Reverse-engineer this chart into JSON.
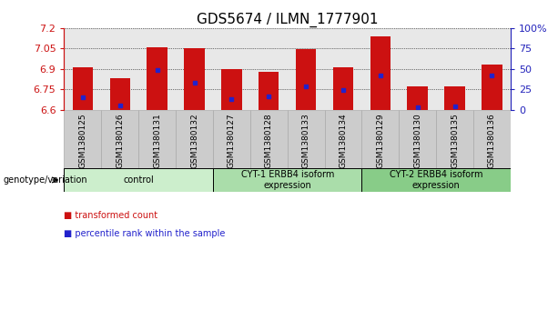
{
  "title": "GDS5674 / ILMN_1777901",
  "samples": [
    "GSM1380125",
    "GSM1380126",
    "GSM1380131",
    "GSM1380132",
    "GSM1380127",
    "GSM1380128",
    "GSM1380133",
    "GSM1380134",
    "GSM1380129",
    "GSM1380130",
    "GSM1380135",
    "GSM1380136"
  ],
  "bar_values": [
    6.91,
    6.83,
    7.06,
    7.05,
    6.9,
    6.88,
    7.045,
    6.91,
    7.14,
    6.77,
    6.77,
    6.93
  ],
  "blue_dot_values": [
    6.69,
    6.63,
    6.89,
    6.8,
    6.68,
    6.7,
    6.77,
    6.745,
    6.855,
    6.62,
    6.625,
    6.855
  ],
  "ylim": [
    6.6,
    7.2
  ],
  "yticks": [
    6.6,
    6.75,
    6.9,
    7.05,
    7.2
  ],
  "right_yticks": [
    0,
    25,
    50,
    75,
    100
  ],
  "right_ytick_labels": [
    "0",
    "25",
    "50",
    "75",
    "100%"
  ],
  "bar_color": "#cc1111",
  "blue_dot_color": "#2222cc",
  "plot_bg": "#e8e8e8",
  "left_axis_color": "#cc1111",
  "right_axis_color": "#2222bb",
  "title_fontsize": 11,
  "tick_fontsize": 8,
  "sample_label_fontsize": 6.5,
  "groups": [
    {
      "label": "control",
      "start": 0,
      "end": 4,
      "color": "#cceecc"
    },
    {
      "label": "CYT-1 ERBB4 isoform\nexpression",
      "start": 4,
      "end": 8,
      "color": "#aaddaa"
    },
    {
      "label": "CYT-2 ERBB4 isoform\nexpression",
      "start": 8,
      "end": 12,
      "color": "#88cc88"
    }
  ],
  "legend_items": [
    {
      "color": "#cc1111",
      "label": "transformed count"
    },
    {
      "color": "#2222cc",
      "label": "percentile rank within the sample"
    }
  ],
  "genotype_label": "genotype/variation",
  "bar_width": 0.55,
  "sample_bg_color": "#cccccc",
  "sample_cell_edge_color": "#aaaaaa"
}
